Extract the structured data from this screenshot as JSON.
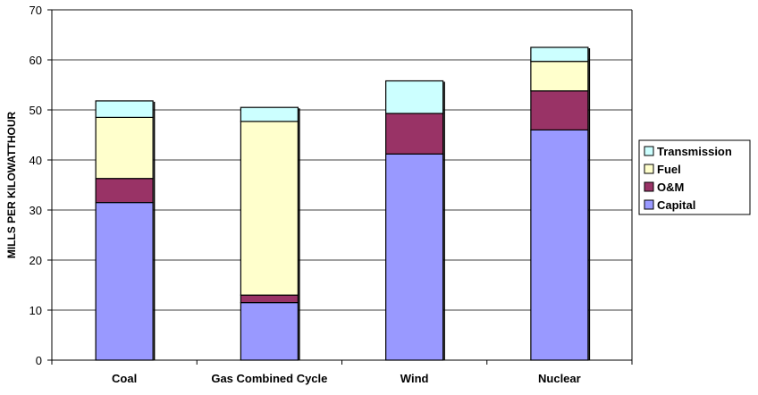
{
  "chart_data": {
    "type": "bar",
    "stacked": true,
    "categories": [
      "Coal",
      "Gas Combined Cycle",
      "Wind",
      "Nuclear"
    ],
    "series": [
      {
        "name": "Capital",
        "values": [
          31.5,
          11.5,
          41.2,
          46.0
        ],
        "color": "#9999ff"
      },
      {
        "name": "O&M",
        "values": [
          4.8,
          1.5,
          8.1,
          7.8
        ],
        "color": "#993366"
      },
      {
        "name": "Fuel",
        "values": [
          12.2,
          34.7,
          0.0,
          5.9
        ],
        "color": "#ffffcc"
      },
      {
        "name": "Transmission",
        "values": [
          3.3,
          2.8,
          6.5,
          2.8
        ],
        "color": "#ccffff"
      }
    ],
    "ylabel": "MILLS PER KILOWATTHOUR",
    "xlabel": "",
    "ylim": [
      0,
      70
    ],
    "yticks": [
      0,
      10,
      20,
      30,
      40,
      50,
      60,
      70
    ],
    "grid": true,
    "legend_position": "right",
    "legend_order": [
      "Transmission",
      "Fuel",
      "O&M",
      "Capital"
    ]
  }
}
